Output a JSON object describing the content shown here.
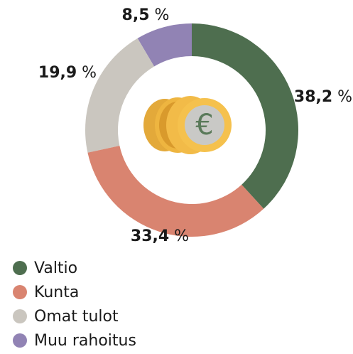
{
  "chart_data": {
    "type": "donut",
    "categories": [
      "Valtio",
      "Kunta",
      "Omat tulot",
      "Muu rahoitus"
    ],
    "values": [
      38.2,
      33.4,
      19.9,
      8.5
    ],
    "value_labels": [
      "38,2 %",
      "33,4 %",
      "19,9 %",
      "8,5 %"
    ],
    "colors": [
      "#4e6e4f",
      "#d98470",
      "#cac6bf",
      "#9183b4"
    ],
    "legend": "bottom-left"
  }
}
